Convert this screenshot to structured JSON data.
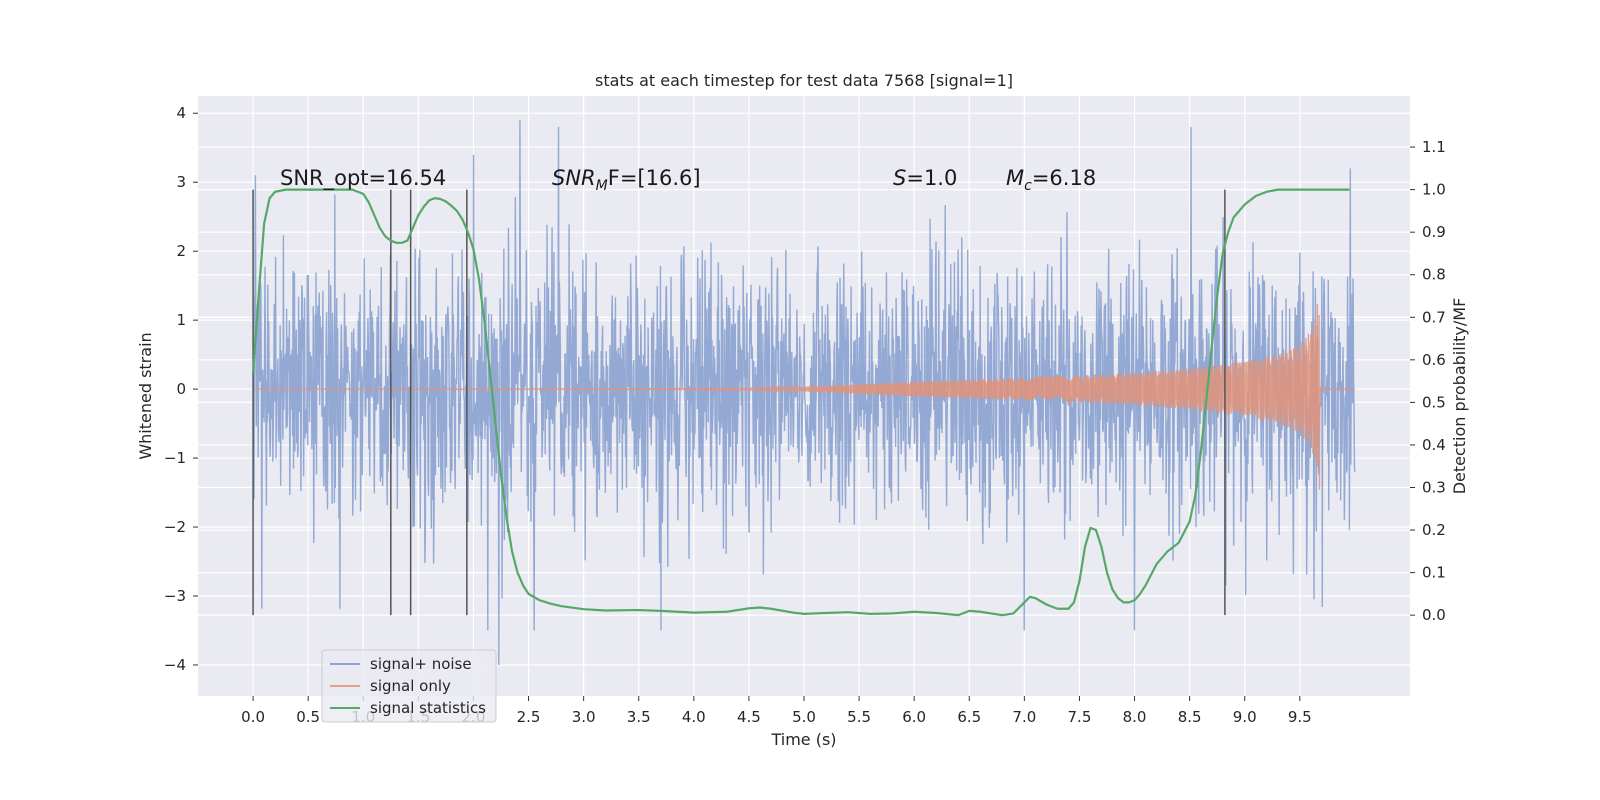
{
  "chart_data": {
    "type": "line",
    "title": "stats at each timestep for test data 7568 [signal=1]",
    "xlabel": "Time (s)",
    "ylabel_left": "Whitened strain",
    "ylabel_right": "Detection probability/MF",
    "xlim": [
      -0.5,
      10.5
    ],
    "ylim_left": [
      -4.45,
      4.25
    ],
    "ylim_right": [
      -0.19,
      1.22
    ],
    "xticks": [
      "0.0",
      "0.5",
      "1.0",
      "1.5",
      "2.0",
      "2.5",
      "3.0",
      "3.5",
      "4.0",
      "4.5",
      "5.0",
      "5.5",
      "6.0",
      "6.5",
      "7.0",
      "7.5",
      "8.0",
      "8.5",
      "9.0",
      "9.5"
    ],
    "yticks_left": [
      "4",
      "3",
      "2",
      "1",
      "0",
      "−1",
      "−2",
      "−3",
      "−4"
    ],
    "yticks_right": [
      "1.1",
      "1.0",
      "0.9",
      "0.8",
      "0.7",
      "0.6",
      "0.5",
      "0.4",
      "0.3",
      "0.2",
      "0.1",
      "0.0"
    ],
    "grid": true,
    "legend": "lower-left",
    "colors": {
      "noise": "#8ea5d2",
      "signal": "#e0937a",
      "stats": "#55a868",
      "vline": "#555555",
      "bg": "#eaeaf2"
    },
    "annotations": [
      {
        "text_main": "SNR_opt=16.54",
        "text_sub": ""
      },
      {
        "text_main": "SNR",
        "text_sub": "M",
        "text_rest": "F=[16.6]"
      },
      {
        "text_main": "S",
        "text_rest": "=1.0"
      },
      {
        "text_main": "M",
        "text_sub": "c",
        "text_rest": "=6.18"
      }
    ],
    "vlines_x": [
      0.0,
      1.25,
      1.43,
      1.94,
      8.82
    ],
    "series": [
      {
        "name": "signal+ noise",
        "axis": "left",
        "t_range": [
          0.0,
          10.0
        ],
        "std": 0.95,
        "peaks": [
          [
            2.42,
            3.9
          ],
          [
            2.77,
            3.8
          ],
          [
            8.51,
            3.8
          ],
          [
            2.23,
            -4.0
          ],
          [
            2.13,
            -3.5
          ],
          [
            7.0,
            -3.5
          ],
          [
            8.0,
            -3.5
          ],
          [
            3.7,
            -3.5
          ],
          [
            2.55,
            -3.5
          ],
          [
            9.96,
            3.2
          ],
          [
            0.02,
            3.1
          ],
          [
            2.0,
            3.4
          ]
        ]
      },
      {
        "name": "signal only",
        "axis": "left",
        "envelope": {
          "t": [
            0.0,
            3.0,
            4.5,
            5.0,
            5.5,
            6.0,
            6.5,
            7.0,
            7.5,
            8.0,
            8.5,
            9.0,
            9.3,
            9.5,
            9.6,
            9.65,
            9.68
          ],
          "amp": [
            0.0,
            0.005,
            0.01,
            0.03,
            0.07,
            0.11,
            0.14,
            0.17,
            0.2,
            0.24,
            0.3,
            0.4,
            0.5,
            0.65,
            0.85,
            1.1,
            1.55
          ]
        },
        "end_time": 9.68
      },
      {
        "name": "signal statistics",
        "axis": "right",
        "x": [
          0.0,
          0.05,
          0.1,
          0.15,
          0.2,
          0.3,
          0.5,
          0.7,
          0.9,
          1.0,
          1.05,
          1.1,
          1.15,
          1.2,
          1.25,
          1.3,
          1.35,
          1.4,
          1.45,
          1.5,
          1.55,
          1.6,
          1.65,
          1.7,
          1.75,
          1.8,
          1.85,
          1.9,
          1.95,
          2.0,
          2.05,
          2.1,
          2.15,
          2.2,
          2.25,
          2.3,
          2.35,
          2.4,
          2.45,
          2.5,
          2.6,
          2.7,
          2.8,
          3.0,
          3.2,
          3.5,
          3.7,
          4.0,
          4.3,
          4.5,
          4.6,
          4.7,
          4.9,
          5.0,
          5.2,
          5.4,
          5.6,
          5.8,
          6.0,
          6.2,
          6.4,
          6.5,
          6.6,
          6.8,
          6.9,
          7.0,
          7.05,
          7.1,
          7.2,
          7.3,
          7.4,
          7.45,
          7.5,
          7.55,
          7.6,
          7.65,
          7.7,
          7.75,
          7.8,
          7.85,
          7.9,
          7.95,
          8.0,
          8.05,
          8.1,
          8.2,
          8.3,
          8.4,
          8.5,
          8.55,
          8.6,
          8.65,
          8.7,
          8.75,
          8.8,
          8.85,
          8.9,
          9.0,
          9.1,
          9.2,
          9.3,
          9.5,
          9.7,
          9.95
        ],
        "y": [
          0.57,
          0.75,
          0.92,
          0.98,
          0.995,
          1.0,
          1.0,
          1.0,
          1.0,
          0.99,
          0.97,
          0.94,
          0.91,
          0.89,
          0.88,
          0.875,
          0.875,
          0.88,
          0.91,
          0.94,
          0.96,
          0.975,
          0.98,
          0.978,
          0.972,
          0.962,
          0.95,
          0.93,
          0.9,
          0.86,
          0.79,
          0.69,
          0.57,
          0.45,
          0.33,
          0.23,
          0.15,
          0.1,
          0.07,
          0.05,
          0.035,
          0.027,
          0.021,
          0.014,
          0.011,
          0.012,
          0.01,
          0.006,
          0.008,
          0.016,
          0.018,
          0.015,
          0.006,
          0.003,
          0.005,
          0.007,
          0.003,
          0.004,
          0.008,
          0.005,
          0.0,
          0.01,
          0.008,
          0.0,
          0.004,
          0.03,
          0.043,
          0.04,
          0.025,
          0.015,
          0.015,
          0.03,
          0.08,
          0.16,
          0.205,
          0.2,
          0.16,
          0.1,
          0.06,
          0.04,
          0.03,
          0.03,
          0.035,
          0.05,
          0.07,
          0.12,
          0.15,
          0.17,
          0.22,
          0.28,
          0.38,
          0.5,
          0.63,
          0.75,
          0.85,
          0.9,
          0.935,
          0.965,
          0.985,
          0.995,
          1.0,
          1.0,
          1.0,
          1.0
        ]
      }
    ]
  }
}
